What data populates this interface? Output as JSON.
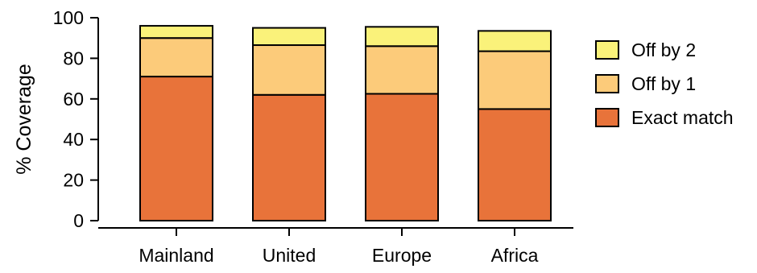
{
  "chart_data": {
    "type": "bar",
    "stacked": true,
    "categories": [
      "Mainland",
      "United",
      "Europe",
      "Africa"
    ],
    "series": [
      {
        "name": "Exact match",
        "values": [
          71,
          62,
          62.5,
          55
        ],
        "color": "#E8733A"
      },
      {
        "name": "Off by 1",
        "values": [
          19,
          24.5,
          23.5,
          28.5
        ],
        "color": "#FCCB7A"
      },
      {
        "name": "Off by 2",
        "values": [
          6,
          8.5,
          9.5,
          10
        ],
        "color": "#FAF27A"
      }
    ],
    "title": "",
    "xlabel": "",
    "ylabel": "% Coverage",
    "ylim": [
      0,
      100
    ],
    "yticks": [
      0,
      20,
      40,
      60,
      80,
      100
    ],
    "grid": false,
    "legend_position": "right",
    "legend_order": [
      "Off by 2",
      "Off by 1",
      "Exact match"
    ]
  }
}
